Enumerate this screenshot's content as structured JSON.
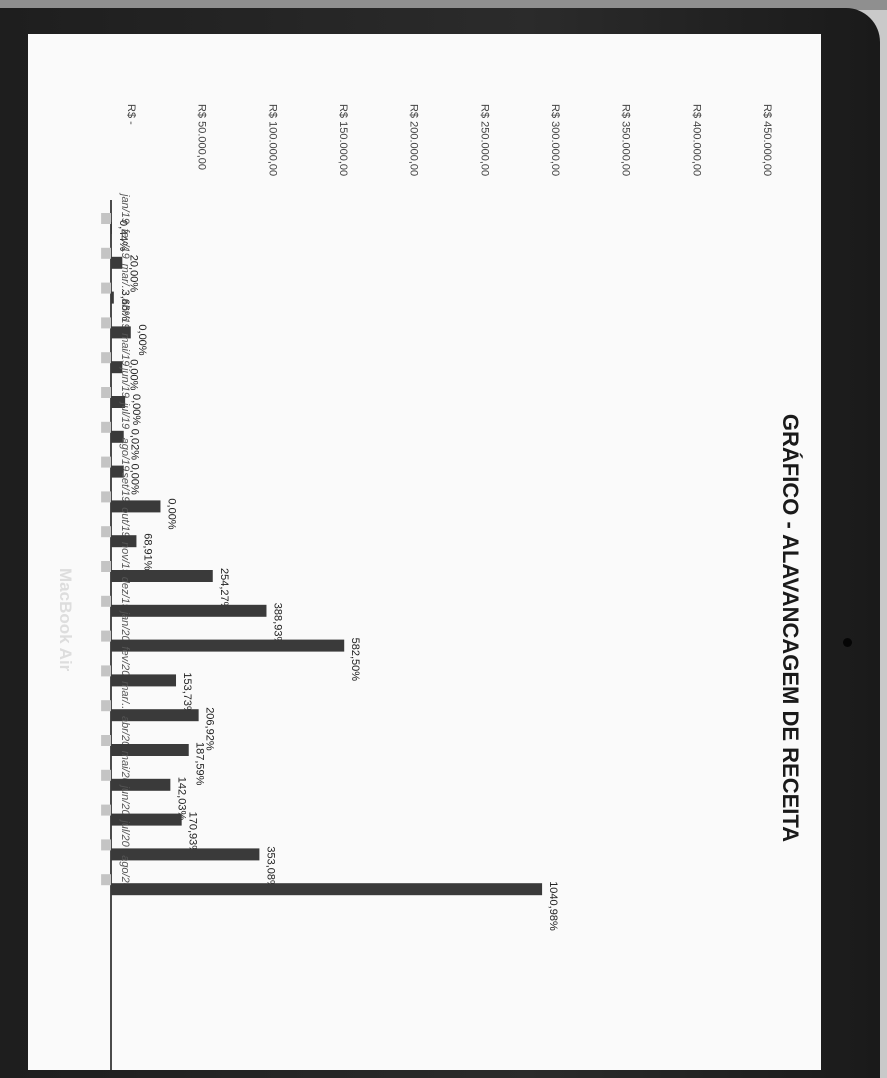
{
  "device": {
    "brand_label": "MacBook Air"
  },
  "chart_data": {
    "type": "bar",
    "title": "GRÁFICO - ALAVANCAGEM DE RECEITA",
    "categories": [
      "jan/19",
      "fev/19",
      "mar/...",
      "abr/19",
      "mai/19",
      "jun/19",
      "jul/19",
      "ago/19",
      "set/19",
      "out/19",
      "nov/19",
      "dez/19",
      "jan/20",
      "fev/20",
      "mar/...",
      "abr/20",
      "mai/20",
      "jun/20",
      "jul/20",
      "ago/20"
    ],
    "y_tick_labels": [
      "R$ -",
      "R$ 50.000,00",
      "R$ 100.000,00",
      "R$ 150.000,00",
      "R$ 200.000,00",
      "R$ 250.000,00",
      "R$ 300.000,00",
      "R$ 350.000,00",
      "R$ 400.000,00",
      "R$ 450.000,00"
    ],
    "ylim": [
      0,
      450000
    ],
    "series": [
      {
        "values": [
          7000,
          7000,
          7000,
          7000,
          7000,
          7000,
          7000,
          7000,
          7000,
          7000,
          7000,
          7000,
          7000,
          7000,
          7000,
          7000,
          7000,
          7000,
          7000,
          7000
        ],
        "color": "#c4c4c4"
      },
      {
        "values": [
          200,
          8000,
          2000,
          14000,
          8000,
          10000,
          9000,
          9000,
          35000,
          18000,
          72000,
          110000,
          165000,
          46000,
          62000,
          55000,
          42000,
          50000,
          105000,
          305000
        ],
        "color": "#3a3a3a"
      }
    ],
    "data_labels": [
      "0,44%",
      "20,00%",
      "3,66%",
      "0,00%",
      "0,00%",
      "0,00%",
      "0,02%",
      "0,00%",
      "0,00%",
      "68,91%",
      "254,27%",
      "388,93%",
      "582,50%",
      "153,73%",
      "206,92%",
      "187,59%",
      "142,03%",
      "170,93%",
      "353,08%",
      "1040,98%"
    ],
    "legend": "none",
    "grid": false,
    "colors": {
      "secondary": "#c4c4c4",
      "primary": "#3a3a3a"
    }
  }
}
